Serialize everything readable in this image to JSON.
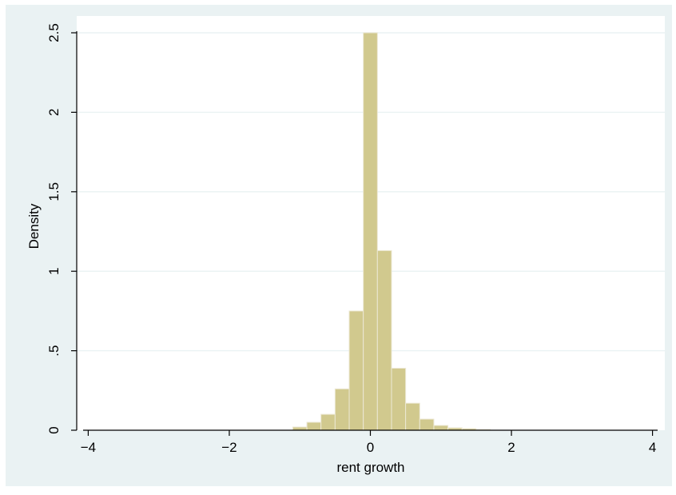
{
  "chart_data": {
    "type": "bar",
    "subtype": "histogram",
    "title": "",
    "xlabel": "rent growth",
    "ylabel": "Density",
    "xlim": [
      -4.05,
      4.05
    ],
    "ylim": [
      0,
      2.5
    ],
    "xticks": [
      -4,
      -2,
      0,
      2,
      4
    ],
    "xtick_labels": [
      "−4",
      "−2",
      "0",
      "2",
      "4"
    ],
    "yticks": [
      0,
      0.5,
      1,
      1.5,
      2,
      2.5
    ],
    "ytick_labels": [
      "0",
      ".5",
      "1",
      "1.5",
      "2",
      "2.5"
    ],
    "grid": "horizontal",
    "legend": "none",
    "bins": [
      {
        "x0": -1.1,
        "x1": -0.9,
        "density": 0.02
      },
      {
        "x0": -0.9,
        "x1": -0.7,
        "density": 0.05
      },
      {
        "x0": -0.7,
        "x1": -0.5,
        "density": 0.1
      },
      {
        "x0": -0.5,
        "x1": -0.3,
        "density": 0.26
      },
      {
        "x0": -0.3,
        "x1": -0.1,
        "density": 0.75
      },
      {
        "x0": -0.1,
        "x1": 0.1,
        "density": 2.5
      },
      {
        "x0": 0.1,
        "x1": 0.3,
        "density": 1.13
      },
      {
        "x0": 0.3,
        "x1": 0.5,
        "density": 0.39
      },
      {
        "x0": 0.5,
        "x1": 0.7,
        "density": 0.17
      },
      {
        "x0": 0.7,
        "x1": 0.9,
        "density": 0.07
      },
      {
        "x0": 0.9,
        "x1": 1.1,
        "density": 0.03
      },
      {
        "x0": 1.1,
        "x1": 1.3,
        "density": 0.015
      },
      {
        "x0": 1.3,
        "x1": 1.5,
        "density": 0.01
      },
      {
        "x0": 1.5,
        "x1": 1.7,
        "density": 0.005
      }
    ],
    "colors": {
      "bar_fill": "#d1c98e",
      "bar_stroke": "#ece8d4",
      "outer_background": "#eaf2f3",
      "plot_background": "#ffffff",
      "grid": "#eaf2f3",
      "axis": "#000000"
    }
  }
}
